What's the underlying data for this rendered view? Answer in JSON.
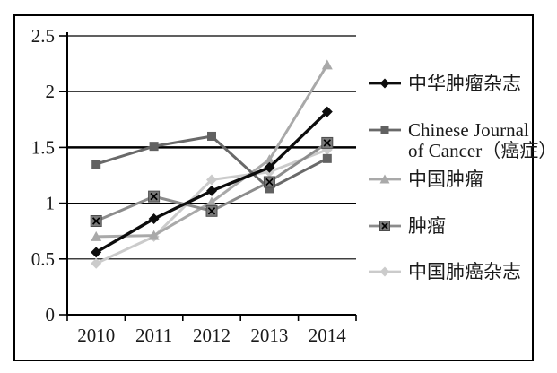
{
  "chart_data": {
    "type": "line",
    "title": "",
    "xlabel": "",
    "ylabel": "",
    "x": [
      "2010",
      "2011",
      "2012",
      "2013",
      "2014"
    ],
    "series": [
      {
        "name": "中华肿瘤杂志",
        "marker": "diamond",
        "color": "#0d0d0d",
        "marker_fill": "#0d0d0d",
        "values": [
          0.56,
          0.86,
          1.11,
          1.32,
          1.82
        ]
      },
      {
        "name": "Chinese Journal of Cancer（癌症）",
        "marker": "square",
        "color": "#696969",
        "marker_fill": "#616161",
        "values": [
          1.35,
          1.51,
          1.6,
          1.13,
          1.4
        ]
      },
      {
        "name": "中国肿瘤",
        "marker": "triangle",
        "color": "#a9a9a9",
        "marker_fill": "#a9a9a9",
        "values": [
          0.7,
          0.71,
          1.01,
          1.39,
          2.24
        ]
      },
      {
        "name": "肿瘤",
        "marker": "x-square",
        "color": "#8c8c8c",
        "marker_fill": "#7a7a7a",
        "values": [
          0.84,
          1.06,
          0.93,
          1.19,
          1.54
        ]
      },
      {
        "name": "中国肺癌杂志",
        "marker": "diamond",
        "color": "#cbcbcb",
        "marker_fill": "#cbcbcb",
        "values": [
          0.46,
          0.7,
          1.21,
          1.28,
          1.48
        ]
      }
    ],
    "ylim": [
      0,
      2.5
    ],
    "yticks": [
      0,
      0.5,
      1,
      1.5,
      2,
      2.5
    ],
    "ytick_labels": [
      "0",
      "0.5",
      "1",
      "1.5",
      "2",
      "2.5"
    ],
    "bold_gridline_value": 1.5,
    "grid": true,
    "legend_position": "right",
    "axis_color": "#000000",
    "text_color": "#1a1a1a"
  },
  "legend": {
    "items": [
      {
        "line1": "中华肿瘤杂志",
        "line2": ""
      },
      {
        "line1": "Chinese Journal",
        "line2": "of Cancer（癌症）"
      },
      {
        "line1": "中国肿瘤",
        "line2": ""
      },
      {
        "line1": "肿瘤",
        "line2": ""
      },
      {
        "line1": "中国肺癌杂志",
        "line2": ""
      }
    ]
  }
}
